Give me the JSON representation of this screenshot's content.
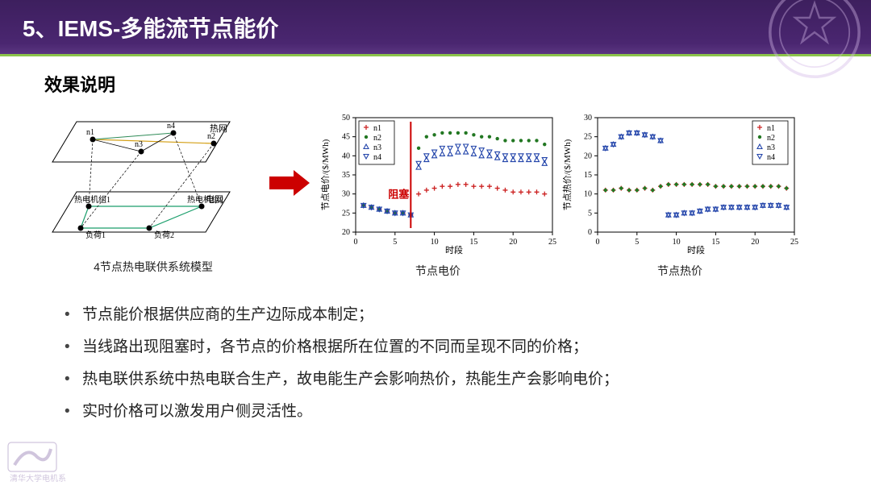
{
  "header": {
    "title": "5、IEMS-多能流节点能价"
  },
  "subtitle": "效果说明",
  "diagram": {
    "caption": "4节点热电联供系统模型",
    "top_label": "热网",
    "bottom_label": "电网",
    "nodes_top": [
      "n1",
      "n4",
      "n3",
      "n2"
    ],
    "nodes_bottom": [
      "热电机组1",
      "热电机组2",
      "负荷1",
      "负荷2"
    ],
    "colors": {
      "outline": "#000000",
      "link_top1": "#d4a017",
      "link_top2": "#2e8b57",
      "link_bot": "#1a9e6b"
    }
  },
  "chart1": {
    "caption": "节点电价",
    "type": "scatter",
    "xlabel": "时段",
    "ylabel": "节点电价/($/MWh)",
    "xlim": [
      0,
      25
    ],
    "ylim": [
      20,
      50
    ],
    "xticks": [
      0,
      5,
      10,
      15,
      20,
      25
    ],
    "yticks": [
      20,
      25,
      30,
      35,
      40,
      45,
      50
    ],
    "annotation": {
      "text": "阻塞",
      "x": 7,
      "color": "#cc0000"
    },
    "background_color": "#ffffff",
    "grid": false,
    "box_color": "#000000",
    "legend_pos": "top-left",
    "series": [
      {
        "name": "n1",
        "marker": "plus",
        "color": "#cc2222",
        "y": [
          27,
          26.5,
          26,
          25.5,
          25,
          25,
          24.5,
          30,
          31,
          31.5,
          32,
          32,
          32.5,
          32.5,
          32,
          32,
          32,
          31.5,
          31,
          30.5,
          30.5,
          30.5,
          30.5,
          30
        ]
      },
      {
        "name": "n2",
        "marker": "dot",
        "color": "#227722",
        "y": [
          27,
          26.5,
          26,
          25.5,
          25,
          25,
          24.5,
          42,
          45,
          45.5,
          46,
          46,
          46,
          46,
          45.5,
          45,
          45,
          44.5,
          44,
          44,
          44,
          44,
          44,
          43
        ]
      },
      {
        "name": "n3",
        "marker": "triangle",
        "color": "#2244aa",
        "y": [
          27,
          26.5,
          26,
          25.5,
          25,
          25,
          24.5,
          37,
          39,
          40,
          40.5,
          40.5,
          41,
          41,
          40.5,
          40,
          40,
          39.5,
          39,
          39,
          39,
          39,
          39,
          38
        ]
      },
      {
        "name": "n4",
        "marker": "tridown",
        "color": "#2244aa",
        "y": [
          27,
          26.5,
          26,
          25.5,
          25,
          25,
          24.5,
          38,
          40,
          41,
          42,
          42,
          42.5,
          42.5,
          42,
          41.5,
          41,
          40.5,
          40,
          40,
          40,
          40,
          40,
          39
        ]
      }
    ]
  },
  "chart2": {
    "caption": "节点热价",
    "type": "scatter",
    "xlabel": "时段",
    "ylabel": "节点热价/($/MWh)",
    "xlim": [
      0,
      25
    ],
    "ylim": [
      0,
      30
    ],
    "xticks": [
      0,
      5,
      10,
      15,
      20,
      25
    ],
    "yticks": [
      0,
      5,
      10,
      15,
      20,
      25,
      30
    ],
    "background_color": "#ffffff",
    "grid": false,
    "box_color": "#000000",
    "legend_pos": "top-right",
    "series": [
      {
        "name": "n1",
        "marker": "plus",
        "color": "#cc2222",
        "y": [
          11,
          11,
          11.5,
          11,
          11,
          11.5,
          11,
          12,
          12.5,
          12.5,
          12.5,
          12.5,
          12.5,
          12.5,
          12,
          12,
          12,
          12,
          12,
          12,
          12,
          12,
          12,
          11.5
        ]
      },
      {
        "name": "n2",
        "marker": "dot",
        "color": "#227722",
        "y": [
          11,
          11,
          11.5,
          11,
          11,
          11.5,
          11,
          12,
          12.5,
          12.5,
          12.5,
          12.5,
          12.5,
          12.5,
          12,
          12,
          12,
          12,
          12,
          12,
          12,
          12,
          12,
          11.5
        ]
      },
      {
        "name": "n3",
        "marker": "triangle",
        "color": "#2244aa",
        "y": [
          22,
          23,
          25,
          26,
          26,
          25.5,
          25,
          24,
          4.5,
          4.5,
          5,
          5,
          5.5,
          6,
          6,
          6.5,
          6.5,
          6.5,
          6.5,
          6.5,
          7,
          7,
          7,
          6.5
        ]
      },
      {
        "name": "n4",
        "marker": "tridown",
        "color": "#2244aa",
        "y": [
          22,
          23,
          25,
          26,
          26,
          25.5,
          25,
          24,
          4.5,
          4.5,
          5,
          5,
          5.5,
          6,
          6,
          6.5,
          6.5,
          6.5,
          6.5,
          6.5,
          7,
          7,
          7,
          6.5
        ]
      }
    ]
  },
  "bullets": [
    "节点能价根据供应商的生产边际成本制定；",
    "当线路出现阻塞时，各节点的价格根据所在位置的不同而呈现不同的价格；",
    "热电联供系统中热电联合生产，故电能生产会影响热价，热能生产会影响电价；",
    "实时价格可以激发用户侧灵活性。"
  ],
  "footer_logo": "清华大学电机系"
}
